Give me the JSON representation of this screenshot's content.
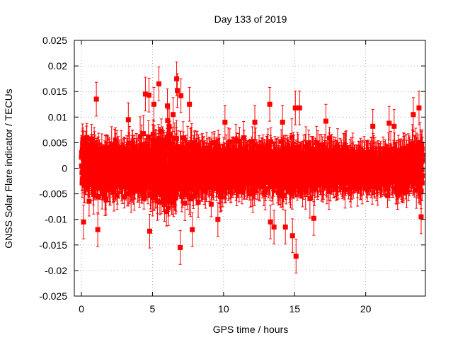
{
  "chart_data": {
    "type": "scatter",
    "title": "Day 133 of 2019",
    "xlabel": "GPS time / hours",
    "ylabel": "GNSS Solar Flare indicator / TECUs",
    "xlim": [
      -0.5,
      24.2
    ],
    "ylim": [
      -0.025,
      0.025
    ],
    "xticks": [
      0,
      5,
      10,
      15,
      20
    ],
    "xtick_labels": [
      "0",
      "5",
      "10",
      "15",
      "20"
    ],
    "yticks": [
      -0.025,
      -0.02,
      -0.015,
      -0.01,
      -0.005,
      0,
      0.005,
      0.01,
      0.015,
      0.02,
      0.025
    ],
    "ytick_labels": [
      "-0.025",
      "-0.02",
      "-0.015",
      "-0.01",
      "-0.005",
      "0",
      "0.005",
      "0.01",
      "0.015",
      "0.02",
      "0.025"
    ],
    "grid": true,
    "legend": "none",
    "series": [
      {
        "name": "solar flare indicator",
        "color": "#ff0000",
        "marker": "square",
        "error_bars": true,
        "typical_error": 0.003,
        "x_start": 0.0,
        "x_end": 24.0,
        "x_step": 0.0083,
        "envelope": {
          "hours": [
            0,
            1,
            2,
            3,
            4,
            5,
            6,
            7,
            8,
            9,
            10,
            11,
            12,
            13,
            14,
            15,
            16,
            17,
            18,
            19,
            20,
            21,
            22,
            23,
            24
          ],
          "std": [
            0.004,
            0.0042,
            0.0038,
            0.0036,
            0.004,
            0.0048,
            0.0055,
            0.005,
            0.0042,
            0.0038,
            0.0035,
            0.0034,
            0.0033,
            0.0036,
            0.004,
            0.0038,
            0.0034,
            0.003,
            0.0028,
            0.0027,
            0.0026,
            0.0028,
            0.003,
            0.0036,
            0.004
          ]
        },
        "notable_points": [
          {
            "x": 0.15,
            "y": -0.0105
          },
          {
            "x": 1.05,
            "y": 0.0135
          },
          {
            "x": 1.15,
            "y": -0.012
          },
          {
            "x": 3.3,
            "y": 0.0095
          },
          {
            "x": 4.5,
            "y": 0.0145
          },
          {
            "x": 4.75,
            "y": 0.0143
          },
          {
            "x": 4.8,
            "y": -0.0123
          },
          {
            "x": 5.1,
            "y": 0.0125
          },
          {
            "x": 5.45,
            "y": 0.0165
          },
          {
            "x": 6.05,
            "y": 0.0122
          },
          {
            "x": 6.45,
            "y": 0.0105
          },
          {
            "x": 6.7,
            "y": 0.0175
          },
          {
            "x": 6.75,
            "y": 0.0152
          },
          {
            "x": 6.95,
            "y": -0.0155
          },
          {
            "x": 7.0,
            "y": 0.0142
          },
          {
            "x": 7.6,
            "y": 0.0125
          },
          {
            "x": 7.8,
            "y": -0.012
          },
          {
            "x": 9.6,
            "y": -0.01
          },
          {
            "x": 10.1,
            "y": 0.009
          },
          {
            "x": 12.2,
            "y": 0.009
          },
          {
            "x": 13.3,
            "y": -0.0105
          },
          {
            "x": 13.55,
            "y": -0.0115
          },
          {
            "x": 13.25,
            "y": 0.0125
          },
          {
            "x": 14.15,
            "y": 0.009
          },
          {
            "x": 14.35,
            "y": -0.0115
          },
          {
            "x": 14.85,
            "y": -0.0132
          },
          {
            "x": 15.05,
            "y": 0.0118
          },
          {
            "x": 15.1,
            "y": -0.0172
          },
          {
            "x": 15.35,
            "y": 0.0118
          },
          {
            "x": 16.35,
            "y": -0.0098
          },
          {
            "x": 17.2,
            "y": 0.0092
          },
          {
            "x": 20.5,
            "y": 0.0082
          },
          {
            "x": 21.65,
            "y": 0.0088
          },
          {
            "x": 22.0,
            "y": 0.0082
          },
          {
            "x": 23.35,
            "y": 0.0105
          },
          {
            "x": 23.75,
            "y": 0.0118
          },
          {
            "x": 23.9,
            "y": -0.0095
          }
        ]
      }
    ]
  }
}
